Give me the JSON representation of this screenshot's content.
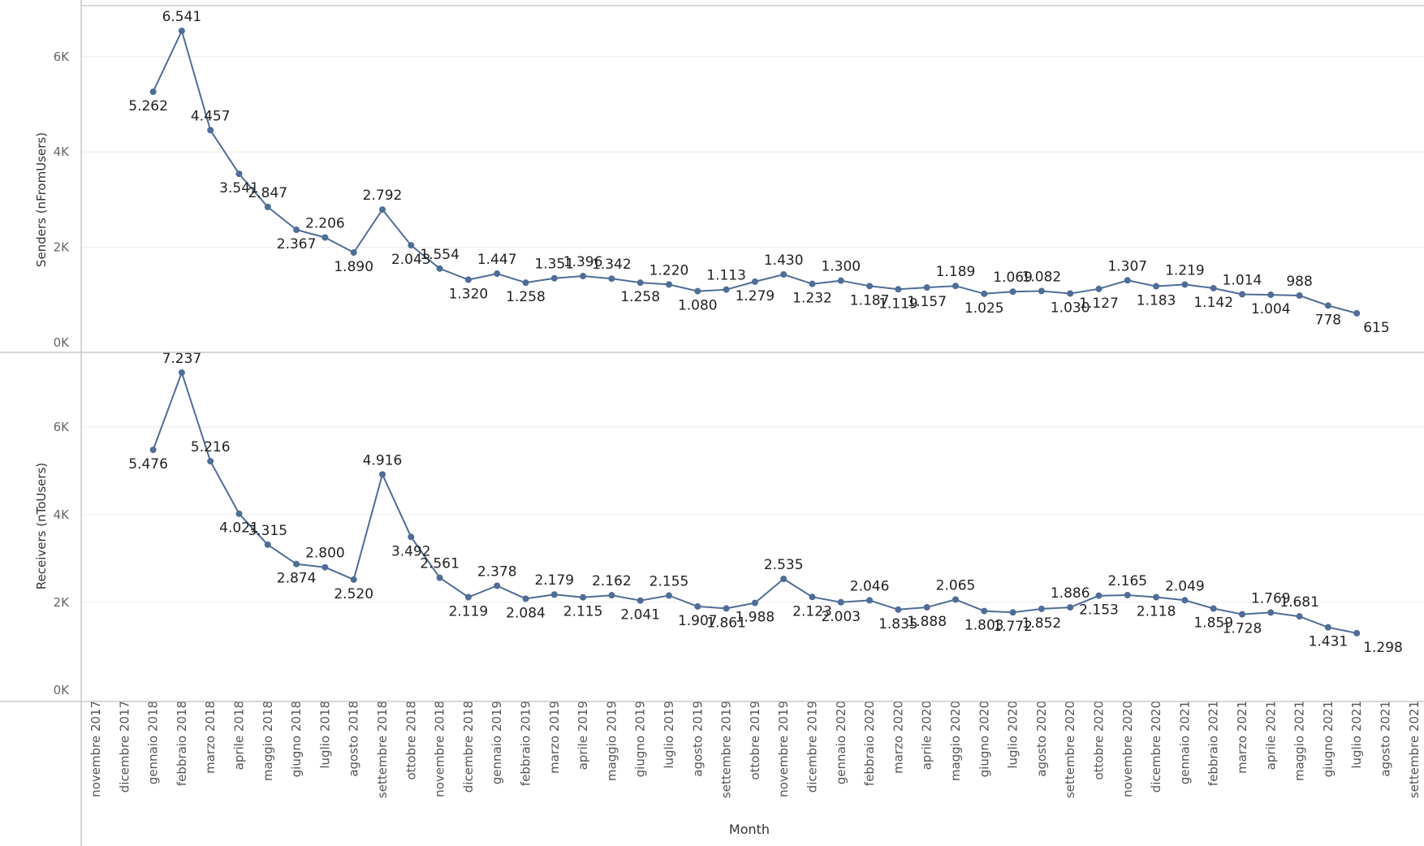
{
  "chart_data": {
    "type": "line",
    "xlabel": "Month",
    "x": [
      "novembre 2017",
      "dicembre 2017",
      "gennaio 2018",
      "febbraio 2018",
      "marzo 2018",
      "aprile 2018",
      "maggio 2018",
      "giugno 2018",
      "luglio 2018",
      "agosto 2018",
      "settembre 2018",
      "ottobre 2018",
      "novembre 2018",
      "dicembre 2018",
      "gennaio 2019",
      "febbraio 2019",
      "marzo 2019",
      "aprile 2019",
      "maggio 2019",
      "giugno 2019",
      "luglio 2019",
      "agosto 2019",
      "settembre 2019",
      "ottobre 2019",
      "novembre 2019",
      "dicembre 2019",
      "gennaio 2020",
      "febbraio 2020",
      "marzo 2020",
      "aprile 2020",
      "maggio 2020",
      "giugno 2020",
      "luglio 2020",
      "agosto 2020",
      "settembre 2020",
      "ottobre 2020",
      "novembre 2020",
      "dicembre 2020",
      "gennaio 2021",
      "febbraio 2021",
      "marzo 2021",
      "aprile 2021",
      "maggio 2021",
      "giugno 2021",
      "luglio 2021",
      "agosto 2021",
      "settembre 2021"
    ],
    "color": "#4e6d97",
    "panels": [
      {
        "ylabel": "Senders (nFromUsers)",
        "yticks": [
          "0K",
          "2K",
          "4K",
          "6K"
        ],
        "ytick_values": [
          0,
          2000,
          4000,
          6000
        ],
        "ylim": [
          0,
          6950
        ],
        "values": [
          null,
          null,
          5262,
          6541,
          4457,
          3541,
          2847,
          2367,
          2206,
          1890,
          2792,
          2043,
          1554,
          1320,
          1447,
          1258,
          1351,
          1396,
          1342,
          1258,
          1220,
          1080,
          1113,
          1279,
          1430,
          1232,
          1300,
          1187,
          1119,
          1157,
          1189,
          1025,
          1069,
          1082,
          1030,
          1127,
          1307,
          1183,
          1219,
          1142,
          1014,
          1004,
          988,
          778,
          615,
          null,
          null
        ],
        "labels": [
          null,
          null,
          "5.262",
          "6.541",
          "4.457",
          "3.541",
          "2.847",
          "2.367",
          "2.206",
          "1.890",
          "2.792",
          "2.043",
          "1.554",
          "1.320",
          "1.447",
          "1.258",
          "1.351",
          "1.396",
          "1.342",
          "1.258",
          "1.220",
          "1.080",
          "1.113",
          "1.279",
          "1.430",
          "1.232",
          "1.300",
          "1.187",
          "1.119",
          "1.157",
          "1.189",
          "1.025",
          "1.069",
          "1.082",
          "1.030",
          "1.127",
          "1.307",
          "1.183",
          "1.219",
          "1.142",
          "1.014",
          "1.004",
          "988",
          "778",
          "615",
          null,
          null
        ]
      },
      {
        "ylabel": "Receivers (nToUsers)",
        "yticks": [
          "0K",
          "2K",
          "4K",
          "6K"
        ],
        "ytick_values": [
          0,
          2000,
          4000,
          6000
        ],
        "ylim": [
          0,
          7550
        ],
        "values": [
          null,
          null,
          5476,
          7237,
          5216,
          4021,
          3315,
          2874,
          2800,
          2520,
          4916,
          3492,
          2561,
          2119,
          2378,
          2084,
          2179,
          2115,
          2162,
          2041,
          2155,
          1907,
          1861,
          1988,
          2535,
          2123,
          2003,
          2046,
          1835,
          1888,
          2065,
          1803,
          1772,
          1852,
          1886,
          2153,
          2165,
          2118,
          2049,
          1859,
          1728,
          1769,
          1681,
          1431,
          1298,
          null,
          null
        ],
        "labels": [
          null,
          null,
          "5.476",
          "7.237",
          "5.216",
          "4.021",
          "3.315",
          "2.874",
          "2.800",
          "2.520",
          "4.916",
          "3.492",
          "2.561",
          "2.119",
          "2.378",
          "2.084",
          "2.179",
          "2.115",
          "2.162",
          "2.041",
          "2.155",
          "1.907",
          "1.861",
          "1.988",
          "2.535",
          "2.123",
          "2.003",
          "2.046",
          "1.835",
          "1.888",
          "2.065",
          "1.803",
          "1.772",
          "1.852",
          "1.886",
          "2.153",
          "2.165",
          "2.118",
          "2.049",
          "1.859",
          "1.728",
          "1.769",
          "1.681",
          "1.431",
          "1.298",
          null,
          null
        ]
      }
    ]
  }
}
